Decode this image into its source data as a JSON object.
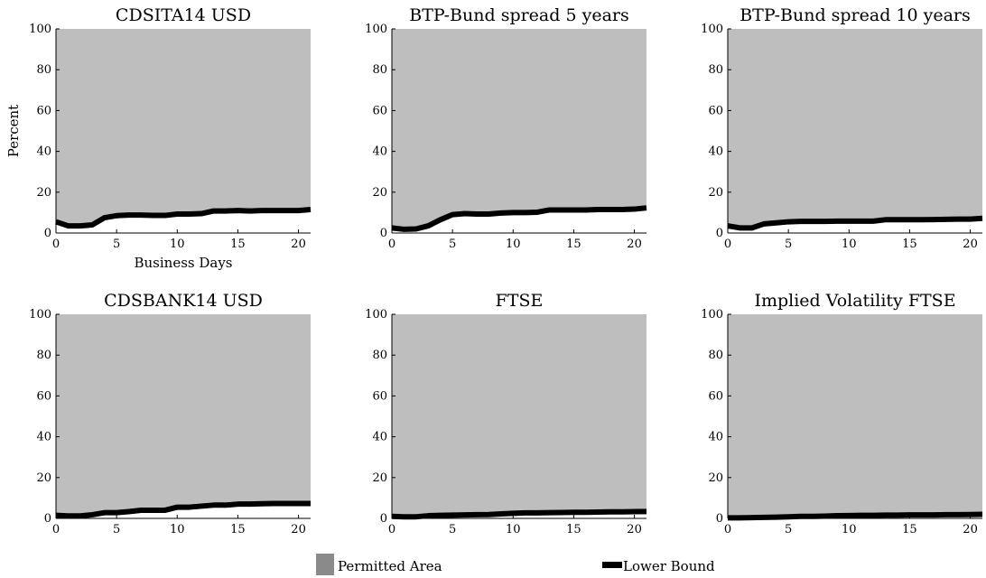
{
  "colors": {
    "permitted_area": "#bebebe",
    "permitted_area_legend": "#8a8a8a",
    "lower_bound": "#000000"
  },
  "legend": {
    "permitted_area": "Permitted Area",
    "lower_bound": "Lower Bound",
    "placement": "bottom-center"
  },
  "chart_data": [
    {
      "type": "area",
      "title": "CDSITA14 USD",
      "xlabel": "Business Days",
      "ylabel": "Percent",
      "xlim": [
        0,
        21
      ],
      "ylim": [
        0,
        100
      ],
      "xticks": [
        "0",
        "5",
        "10",
        "15",
        "20"
      ],
      "yticks": [
        "0",
        "20",
        "40",
        "60",
        "80",
        "100"
      ],
      "x": [
        0,
        1,
        2,
        3,
        4,
        5,
        6,
        7,
        8,
        9,
        10,
        11,
        12,
        13,
        14,
        15,
        16,
        17,
        18,
        19,
        20,
        21
      ],
      "series": [
        {
          "upper": [
            100,
            100,
            100,
            100,
            100,
            100,
            100,
            100,
            100,
            100,
            100,
            100,
            100,
            100,
            100,
            100,
            100,
            100,
            100,
            100,
            100,
            100
          ],
          "values": [
            5.5,
            3.5,
            3.5,
            4,
            7.5,
            8.5,
            8.8,
            8.8,
            8.6,
            8.6,
            9.3,
            9.3,
            9.5,
            10.8,
            10.8,
            11,
            10.8,
            11,
            11,
            11,
            11,
            11.5
          ]
        }
      ]
    },
    {
      "type": "area",
      "title": "BTP-Bund spread 5 years",
      "xlabel": "",
      "ylabel": "",
      "xlim": [
        0,
        21
      ],
      "ylim": [
        0,
        100
      ],
      "xticks": [
        "0",
        "5",
        "10",
        "15",
        "20"
      ],
      "yticks": [
        "0",
        "20",
        "40",
        "60",
        "80",
        "100"
      ],
      "x": [
        0,
        1,
        2,
        3,
        4,
        5,
        6,
        7,
        8,
        9,
        10,
        11,
        12,
        13,
        14,
        15,
        16,
        17,
        18,
        19,
        20,
        21
      ],
      "series": [
        {
          "upper": [
            100,
            100,
            100,
            100,
            100,
            100,
            100,
            100,
            100,
            100,
            100,
            100,
            100,
            100,
            100,
            100,
            100,
            100,
            100,
            100,
            100,
            100
          ],
          "values": [
            2.5,
            1.8,
            2,
            3.5,
            6.5,
            9,
            9.5,
            9.3,
            9.3,
            9.8,
            10,
            10,
            10.2,
            11.3,
            11.3,
            11.3,
            11.3,
            11.5,
            11.5,
            11.5,
            11.7,
            12.3
          ]
        }
      ]
    },
    {
      "type": "area",
      "title": "BTP-Bund spread 10 years",
      "xlabel": "",
      "ylabel": "",
      "xlim": [
        0,
        21
      ],
      "ylim": [
        0,
        100
      ],
      "xticks": [
        "0",
        "5",
        "10",
        "15",
        "20"
      ],
      "yticks": [
        "0",
        "20",
        "40",
        "60",
        "80",
        "100"
      ],
      "x": [
        0,
        1,
        2,
        3,
        4,
        5,
        6,
        7,
        8,
        9,
        10,
        11,
        12,
        13,
        14,
        15,
        16,
        17,
        18,
        19,
        20,
        21
      ],
      "series": [
        {
          "upper": [
            100,
            100,
            100,
            100,
            100,
            100,
            100,
            100,
            100,
            100,
            100,
            100,
            100,
            100,
            100,
            100,
            100,
            100,
            100,
            100,
            100,
            100
          ],
          "values": [
            3.5,
            2.5,
            2.5,
            4.5,
            5,
            5.5,
            5.7,
            5.7,
            5.7,
            5.8,
            5.8,
            5.8,
            5.8,
            6.5,
            6.5,
            6.5,
            6.5,
            6.6,
            6.7,
            6.8,
            6.8,
            7.2
          ]
        }
      ]
    },
    {
      "type": "area",
      "title": "CDSBANK14 USD",
      "xlabel": "",
      "ylabel": "",
      "xlim": [
        0,
        21
      ],
      "ylim": [
        0,
        100
      ],
      "xticks": [
        "0",
        "5",
        "10",
        "15",
        "20"
      ],
      "yticks": [
        "0",
        "20",
        "40",
        "60",
        "80",
        "100"
      ],
      "x": [
        0,
        1,
        2,
        3,
        4,
        5,
        6,
        7,
        8,
        9,
        10,
        11,
        12,
        13,
        14,
        15,
        16,
        17,
        18,
        19,
        20,
        21
      ],
      "series": [
        {
          "upper": [
            100,
            100,
            100,
            100,
            100,
            100,
            100,
            100,
            100,
            100,
            100,
            100,
            100,
            100,
            100,
            100,
            100,
            100,
            100,
            100,
            100,
            100
          ],
          "values": [
            1.5,
            1.2,
            1.2,
            1.8,
            2.8,
            2.8,
            3.3,
            4,
            4,
            4,
            5.5,
            5.5,
            6,
            6.5,
            6.5,
            7,
            7,
            7.2,
            7.3,
            7.3,
            7.3,
            7.3
          ]
        }
      ]
    },
    {
      "type": "area",
      "title": "FTSE",
      "xlabel": "",
      "ylabel": "",
      "xlim": [
        0,
        21
      ],
      "ylim": [
        0,
        100
      ],
      "xticks": [
        "0",
        "5",
        "10",
        "15",
        "20"
      ],
      "yticks": [
        "0",
        "20",
        "40",
        "60",
        "80",
        "100"
      ],
      "x": [
        0,
        1,
        2,
        3,
        4,
        5,
        6,
        7,
        8,
        9,
        10,
        11,
        12,
        13,
        14,
        15,
        16,
        17,
        18,
        19,
        20,
        21
      ],
      "series": [
        {
          "upper": [
            100,
            100,
            100,
            100,
            100,
            100,
            100,
            100,
            100,
            100,
            100,
            100,
            100,
            100,
            100,
            100,
            100,
            100,
            100,
            100,
            100,
            100
          ],
          "values": [
            1,
            0.8,
            0.8,
            1.3,
            1.5,
            1.6,
            1.7,
            1.8,
            1.9,
            2.2,
            2.5,
            2.7,
            2.7,
            2.8,
            2.9,
            3,
            3,
            3.1,
            3.2,
            3.2,
            3.3,
            3.4
          ]
        }
      ]
    },
    {
      "type": "area",
      "title": "Implied Volatility FTSE",
      "xlabel": "",
      "ylabel": "",
      "xlim": [
        0,
        21
      ],
      "ylim": [
        0,
        100
      ],
      "xticks": [
        "0",
        "5",
        "10",
        "15",
        "20"
      ],
      "yticks": [
        "0",
        "20",
        "40",
        "60",
        "80",
        "100"
      ],
      "x": [
        0,
        1,
        2,
        3,
        4,
        5,
        6,
        7,
        8,
        9,
        10,
        11,
        12,
        13,
        14,
        15,
        16,
        17,
        18,
        19,
        20,
        21
      ],
      "series": [
        {
          "upper": [
            100,
            100,
            100,
            100,
            100,
            100,
            100,
            100,
            100,
            100,
            100,
            100,
            100,
            100,
            100,
            100,
            100,
            100,
            100,
            100,
            100,
            100
          ],
          "values": [
            0.3,
            0.3,
            0.4,
            0.5,
            0.6,
            0.8,
            1,
            1,
            1.1,
            1.3,
            1.4,
            1.5,
            1.5,
            1.6,
            1.6,
            1.7,
            1.7,
            1.7,
            1.8,
            1.8,
            1.9,
            2
          ]
        }
      ]
    }
  ]
}
